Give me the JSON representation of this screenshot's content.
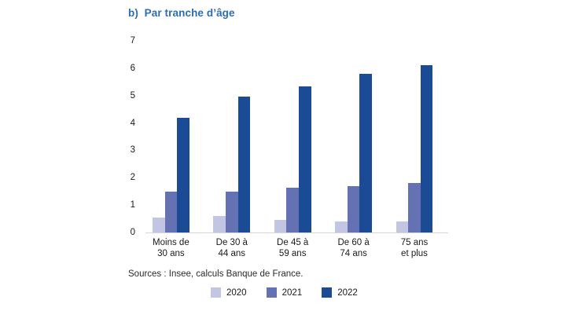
{
  "title": "b)  Par tranche d’âge",
  "source_note": "Sources : Insee, calculs Banque de France.",
  "colors": {
    "title_blue": "#2d6db5",
    "series_2020": "#c3c6e3",
    "series_2021": "#6471b3",
    "series_2022": "#1b4b94",
    "axis_text": "#1a1a1a",
    "baseline": "#d6d6d6"
  },
  "chart_data": {
    "type": "bar",
    "title": "b) Par tranche d’âge",
    "categories": [
      "Moins de 30 ans",
      "De 30 à 44 ans",
      "De 45 à 59 ans",
      "De 60 à 74 ans",
      "75 ans et plus"
    ],
    "category_lines": [
      [
        "Moins de",
        "30 ans"
      ],
      [
        "De 30 à",
        "44 ans"
      ],
      [
        "De 45 à",
        "59 ans"
      ],
      [
        "De 60 à",
        "74 ans"
      ],
      [
        "75 ans",
        "et plus"
      ]
    ],
    "series": [
      {
        "name": "2020",
        "color": "#c3c6e3",
        "values": [
          0.55,
          0.6,
          0.45,
          0.4,
          0.4
        ]
      },
      {
        "name": "2021",
        "color": "#6471b3",
        "values": [
          1.5,
          1.5,
          1.65,
          1.7,
          1.8
        ]
      },
      {
        "name": "2022",
        "color": "#1b4b94",
        "values": [
          4.2,
          4.95,
          5.35,
          5.8,
          6.1
        ]
      }
    ],
    "xlabel": "",
    "ylabel": "",
    "ylim": [
      0,
      7
    ],
    "yticks": [
      0,
      1,
      2,
      3,
      4,
      5,
      6,
      7
    ],
    "grid": false,
    "legend_position": "bottom"
  }
}
